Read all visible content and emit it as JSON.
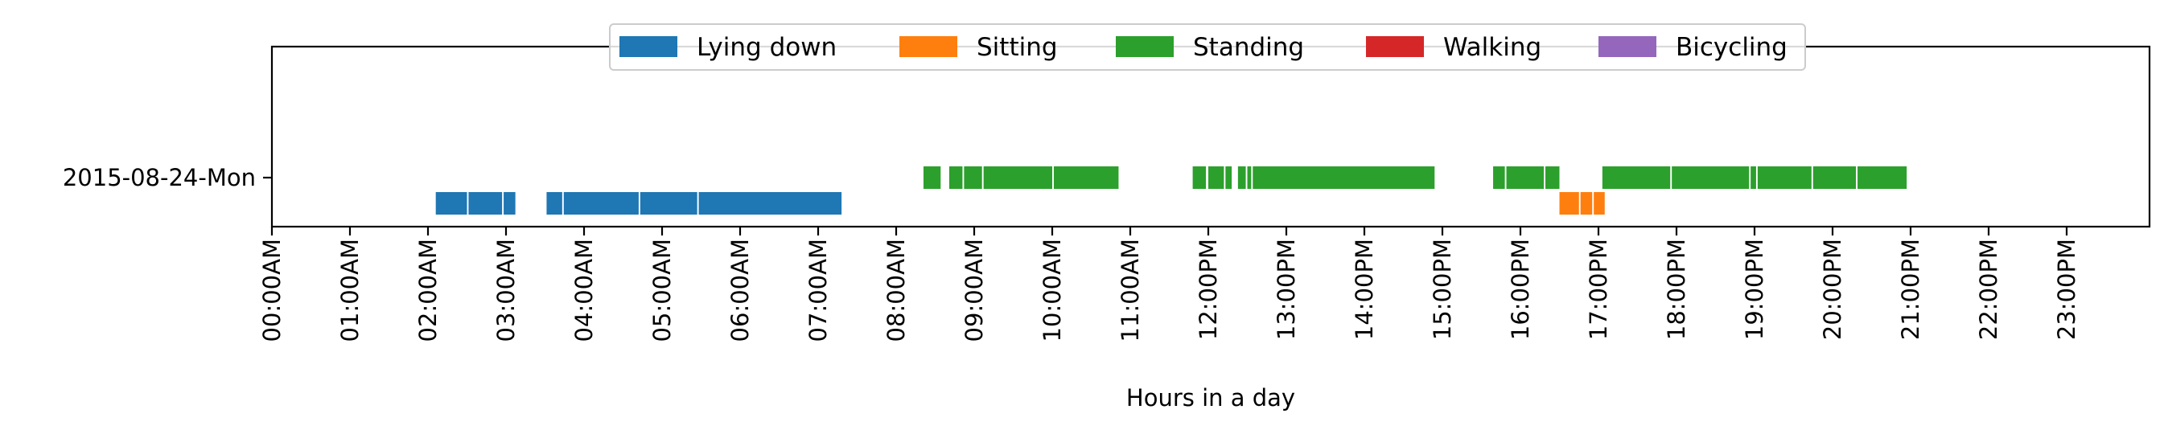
{
  "chart_data": {
    "type": "bar",
    "orientation": "horizontal-timeline",
    "xlabel": "Hours in a day",
    "ylabel": "",
    "xlim": [
      0,
      24
    ],
    "x_ticks": [
      "00:00AM",
      "01:00AM",
      "02:00AM",
      "03:00AM",
      "04:00AM",
      "05:00AM",
      "06:00AM",
      "07:00AM",
      "08:00AM",
      "09:00AM",
      "10:00AM",
      "11:00AM",
      "12:00PM",
      "13:00PM",
      "14:00PM",
      "15:00PM",
      "16:00PM",
      "17:00PM",
      "18:00PM",
      "19:00PM",
      "20:00PM",
      "21:00PM",
      "22:00PM",
      "23:00PM"
    ],
    "y_categories": [
      "2015-08-24-Mon"
    ],
    "grid": false,
    "legend_position": "top-center",
    "series": [
      {
        "name": "Lying down",
        "color": "#1f77b4",
        "level": "below",
        "intervals": [
          [
            2.1,
            2.5
          ],
          [
            2.52,
            2.95
          ],
          [
            2.97,
            3.12
          ],
          [
            3.52,
            3.72
          ],
          [
            3.74,
            4.7
          ],
          [
            4.72,
            5.45
          ],
          [
            5.47,
            7.3
          ]
        ]
      },
      {
        "name": "Sitting",
        "color": "#ff7f0e",
        "level": "below",
        "intervals": [
          [
            16.5,
            16.75
          ],
          [
            16.77,
            16.92
          ],
          [
            16.94,
            17.08
          ]
        ]
      },
      {
        "name": "Standing",
        "color": "#2ca02c",
        "level": "center",
        "intervals": [
          [
            8.35,
            8.57
          ],
          [
            8.68,
            8.85
          ],
          [
            8.87,
            9.1
          ],
          [
            9.12,
            10.0
          ],
          [
            10.02,
            10.85
          ],
          [
            11.8,
            11.97
          ],
          [
            12.0,
            12.2
          ],
          [
            12.22,
            12.3
          ],
          [
            12.38,
            12.48
          ],
          [
            12.5,
            12.55
          ],
          [
            12.57,
            14.9
          ],
          [
            15.65,
            15.8
          ],
          [
            15.82,
            16.3
          ],
          [
            16.32,
            16.5
          ],
          [
            17.05,
            17.92
          ],
          [
            17.94,
            18.93
          ],
          [
            18.95,
            19.02
          ],
          [
            19.04,
            19.73
          ],
          [
            19.75,
            20.3
          ],
          [
            20.32,
            20.95
          ]
        ]
      },
      {
        "name": "Walking",
        "color": "#d62728",
        "level": "center",
        "intervals": []
      },
      {
        "name": "Bicycling",
        "color": "#9467bd",
        "level": "center",
        "intervals": []
      }
    ]
  }
}
